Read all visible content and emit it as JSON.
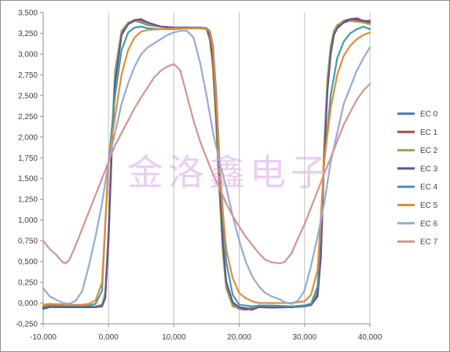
{
  "watermark": "金洛鑫电子",
  "chart_data": {
    "type": "line",
    "title": "",
    "xlabel": "",
    "ylabel": "",
    "xlim": [
      -10000,
      40000
    ],
    "ylim": [
      -250,
      3500
    ],
    "x_ticks": [
      -10000,
      0,
      10000,
      20000,
      30000,
      40000
    ],
    "x_tick_labels": [
      "-10,000",
      "0,000",
      "10,000",
      "20,000",
      "30,000",
      "40,000"
    ],
    "y_ticks": [
      -250,
      0,
      250,
      500,
      750,
      1000,
      1250,
      1500,
      1750,
      2000,
      2250,
      2500,
      2750,
      3000,
      3250,
      3500
    ],
    "y_tick_labels": [
      "-0,250",
      "0,000",
      "0,250",
      "0,500",
      "0,750",
      "1,000",
      "1,250",
      "1,500",
      "1,750",
      "2,000",
      "2,250",
      "2,500",
      "2,750",
      "3,000",
      "3,250",
      "3,500"
    ],
    "grid": "vertical",
    "legend_position": "right",
    "series": [
      {
        "name": "EC 0",
        "color": "#4a74b0",
        "x": [
          -10000,
          -9000,
          -6000,
          -3000,
          -2000,
          -1000,
          -500,
          0,
          500,
          1000,
          2000,
          3000,
          4000,
          5000,
          6000,
          8000,
          10000,
          12000,
          14000,
          15000,
          15500,
          16000,
          16500,
          17000,
          17500,
          18000,
          19000,
          20000,
          21000,
          22000,
          23000,
          25000,
          28000,
          30000,
          31000,
          32000,
          32500,
          33000,
          33500,
          34000,
          34500,
          35000,
          36000,
          37000,
          38000,
          39000,
          40000
        ],
        "y": [
          -60,
          -40,
          -50,
          -50,
          -45,
          -30,
          80,
          800,
          1900,
          2700,
          3250,
          3360,
          3400,
          3380,
          3350,
          3330,
          3320,
          3320,
          3320,
          3310,
          3200,
          2900,
          2200,
          1400,
          700,
          250,
          0,
          -50,
          -60,
          -70,
          -40,
          -50,
          -50,
          -30,
          -20,
          100,
          600,
          1800,
          2600,
          3050,
          3250,
          3320,
          3380,
          3400,
          3400,
          3380,
          3380
        ]
      },
      {
        "name": "EC 1",
        "color": "#b5473f",
        "x": [
          -10000,
          -9000,
          -6000,
          -3000,
          -2000,
          -1000,
          -500,
          0,
          500,
          1000,
          2000,
          3000,
          4000,
          5000,
          6000,
          8000,
          10000,
          12000,
          14000,
          15000,
          15500,
          16000,
          16500,
          17000,
          17500,
          18000,
          19000,
          20000,
          21000,
          22000,
          23000,
          25000,
          28000,
          30000,
          31000,
          32000,
          32500,
          33000,
          33500,
          34000,
          34500,
          35000,
          36000,
          37000,
          38000,
          39000,
          40000
        ],
        "y": [
          -50,
          -45,
          -50,
          -50,
          -40,
          -20,
          100,
          850,
          1950,
          2750,
          3270,
          3370,
          3410,
          3400,
          3370,
          3330,
          3320,
          3320,
          3320,
          3300,
          3180,
          2850,
          2150,
          1350,
          650,
          200,
          -30,
          -70,
          -80,
          -60,
          -40,
          -50,
          -45,
          -30,
          -10,
          130,
          650,
          1850,
          2650,
          3080,
          3270,
          3340,
          3400,
          3420,
          3410,
          3400,
          3380
        ]
      },
      {
        "name": "EC 2",
        "color": "#8cad4a",
        "x": [
          -10000,
          -9000,
          -6000,
          -3000,
          -2000,
          -1000,
          -500,
          0,
          500,
          1000,
          2000,
          3000,
          4000,
          5000,
          6000,
          8000,
          10000,
          12000,
          14000,
          15000,
          15500,
          16000,
          16500,
          17000,
          17500,
          18000,
          19000,
          20000,
          21000,
          22000,
          23000,
          25000,
          28000,
          30000,
          31000,
          32000,
          32500,
          33000,
          33500,
          34000,
          34500,
          35000,
          36000,
          37000,
          38000,
          39000,
          40000
        ],
        "y": [
          -40,
          -40,
          -45,
          -45,
          -40,
          -20,
          120,
          900,
          2000,
          2800,
          3280,
          3380,
          3400,
          3390,
          3360,
          3330,
          3320,
          3320,
          3320,
          3300,
          3170,
          2800,
          2100,
          1300,
          600,
          180,
          -40,
          -60,
          -70,
          -50,
          -40,
          -45,
          -40,
          -30,
          -10,
          150,
          700,
          1900,
          2700,
          3100,
          3280,
          3350,
          3390,
          3400,
          3390,
          3380,
          3360
        ]
      },
      {
        "name": "EC 3",
        "color": "#6e4b92",
        "x": [
          -10000,
          -9000,
          -6000,
          -3000,
          -2000,
          -1000,
          -500,
          0,
          500,
          1000,
          2000,
          3000,
          4000,
          5000,
          6000,
          8000,
          10000,
          12000,
          14000,
          15000,
          15500,
          16000,
          16500,
          17000,
          17500,
          18000,
          19000,
          20000,
          21000,
          22000,
          23000,
          25000,
          28000,
          30000,
          31000,
          32000,
          32500,
          33000,
          33500,
          34000,
          34500,
          35000,
          36000,
          37000,
          38000,
          39000,
          40000
        ],
        "y": [
          -70,
          -50,
          -50,
          -50,
          -50,
          -40,
          60,
          750,
          1850,
          2650,
          3230,
          3360,
          3410,
          3420,
          3380,
          3330,
          3320,
          3320,
          3320,
          3310,
          3210,
          2920,
          2250,
          1450,
          720,
          260,
          10,
          -50,
          -70,
          -80,
          -50,
          -55,
          -50,
          -40,
          -25,
          80,
          550,
          1750,
          2550,
          3000,
          3230,
          3310,
          3380,
          3420,
          3430,
          3400,
          3400
        ]
      },
      {
        "name": "EC 4",
        "color": "#3f9bb0",
        "x": [
          -10000,
          -9000,
          -6000,
          -4000,
          -3000,
          -2000,
          -1000,
          0,
          1000,
          2000,
          3000,
          4000,
          5000,
          6000,
          8000,
          10000,
          12000,
          14000,
          15000,
          15500,
          16000,
          16500,
          17000,
          17500,
          18000,
          19000,
          20000,
          21000,
          22000,
          23000,
          25000,
          28000,
          30000,
          31000,
          32000,
          33000,
          34000,
          35000,
          36000,
          37000,
          38000,
          39000,
          40000
        ],
        "y": [
          -40,
          -30,
          -30,
          -35,
          -30,
          -10,
          150,
          1700,
          2500,
          3050,
          3260,
          3320,
          3330,
          3310,
          3300,
          3300,
          3310,
          3320,
          3310,
          3280,
          3100,
          2500,
          1700,
          1000,
          500,
          100,
          -20,
          -30,
          -40,
          -30,
          -30,
          -40,
          -30,
          -10,
          200,
          1700,
          2500,
          2950,
          3150,
          3250,
          3300,
          3330,
          3300
        ]
      },
      {
        "name": "EC 5",
        "color": "#e28d35",
        "x": [
          -10000,
          -9000,
          -6000,
          -4000,
          -3000,
          -2000,
          -1000,
          0,
          1000,
          2000,
          3000,
          4000,
          5000,
          6000,
          8000,
          10000,
          12000,
          14000,
          15000,
          15500,
          16000,
          16500,
          17000,
          17500,
          18000,
          19000,
          20000,
          21000,
          22000,
          23000,
          25000,
          28000,
          30000,
          31000,
          32000,
          33000,
          34000,
          35000,
          36000,
          37000,
          38000,
          39000,
          40000
        ],
        "y": [
          -20,
          -10,
          -20,
          -20,
          -10,
          30,
          250,
          1700,
          2250,
          2750,
          3050,
          3200,
          3270,
          3290,
          3300,
          3310,
          3310,
          3310,
          3300,
          3270,
          3050,
          2400,
          1700,
          1100,
          650,
          300,
          120,
          60,
          20,
          0,
          0,
          0,
          20,
          100,
          400,
          1700,
          2350,
          2750,
          2980,
          3100,
          3180,
          3230,
          3260
        ]
      },
      {
        "name": "EC 6",
        "color": "#93aad8",
        "x": [
          -10000,
          -9000,
          -8000,
          -7000,
          -6000,
          -5000,
          -4000,
          -3000,
          -2000,
          -1000,
          0,
          1000,
          2000,
          3000,
          4000,
          5000,
          6000,
          7000,
          8000,
          9000,
          10000,
          11000,
          12000,
          13000,
          14000,
          15000,
          16000,
          17000,
          18000,
          19000,
          20000,
          21000,
          22000,
          23000,
          24000,
          25000,
          26000,
          27000,
          28000,
          29000,
          30000,
          31000,
          32000,
          33000,
          34000,
          35000,
          36000,
          37000,
          38000,
          39000,
          40000
        ],
        "y": [
          180,
          80,
          40,
          0,
          -10,
          30,
          150,
          450,
          800,
          1200,
          1700,
          2050,
          2400,
          2650,
          2850,
          3000,
          3080,
          3130,
          3180,
          3230,
          3260,
          3280,
          3280,
          3200,
          2900,
          2500,
          2050,
          1700,
          1400,
          1050,
          750,
          500,
          320,
          200,
          120,
          80,
          50,
          10,
          -10,
          30,
          150,
          450,
          800,
          1200,
          1700,
          2050,
          2400,
          2600,
          2800,
          2950,
          3080
        ]
      },
      {
        "name": "EC 7",
        "color": "#d7928f",
        "x": [
          -10000,
          -9000,
          -8000,
          -7000,
          -6500,
          -6000,
          -5000,
          -4000,
          -3000,
          -2000,
          -1000,
          0,
          1000,
          2000,
          3000,
          4000,
          5000,
          6000,
          7000,
          8000,
          9000,
          10000,
          11000,
          12000,
          13000,
          14000,
          15000,
          16000,
          17000,
          18000,
          19000,
          20000,
          21000,
          22000,
          23000,
          24000,
          25000,
          26000,
          26500,
          27000,
          28000,
          29000,
          30000,
          31000,
          32000,
          33000,
          34000,
          35000,
          36000,
          37000,
          38000,
          39000,
          40000
        ],
        "y": [
          750,
          650,
          580,
          490,
          480,
          520,
          700,
          900,
          1100,
          1300,
          1500,
          1700,
          1900,
          2050,
          2200,
          2350,
          2480,
          2600,
          2720,
          2800,
          2850,
          2880,
          2800,
          2500,
          2200,
          1950,
          1750,
          1550,
          1380,
          1200,
          1050,
          920,
          800,
          700,
          600,
          520,
          490,
          480,
          480,
          500,
          600,
          780,
          950,
          1150,
          1350,
          1560,
          1750,
          1950,
          2150,
          2300,
          2450,
          2560,
          2640
        ]
      }
    ]
  }
}
